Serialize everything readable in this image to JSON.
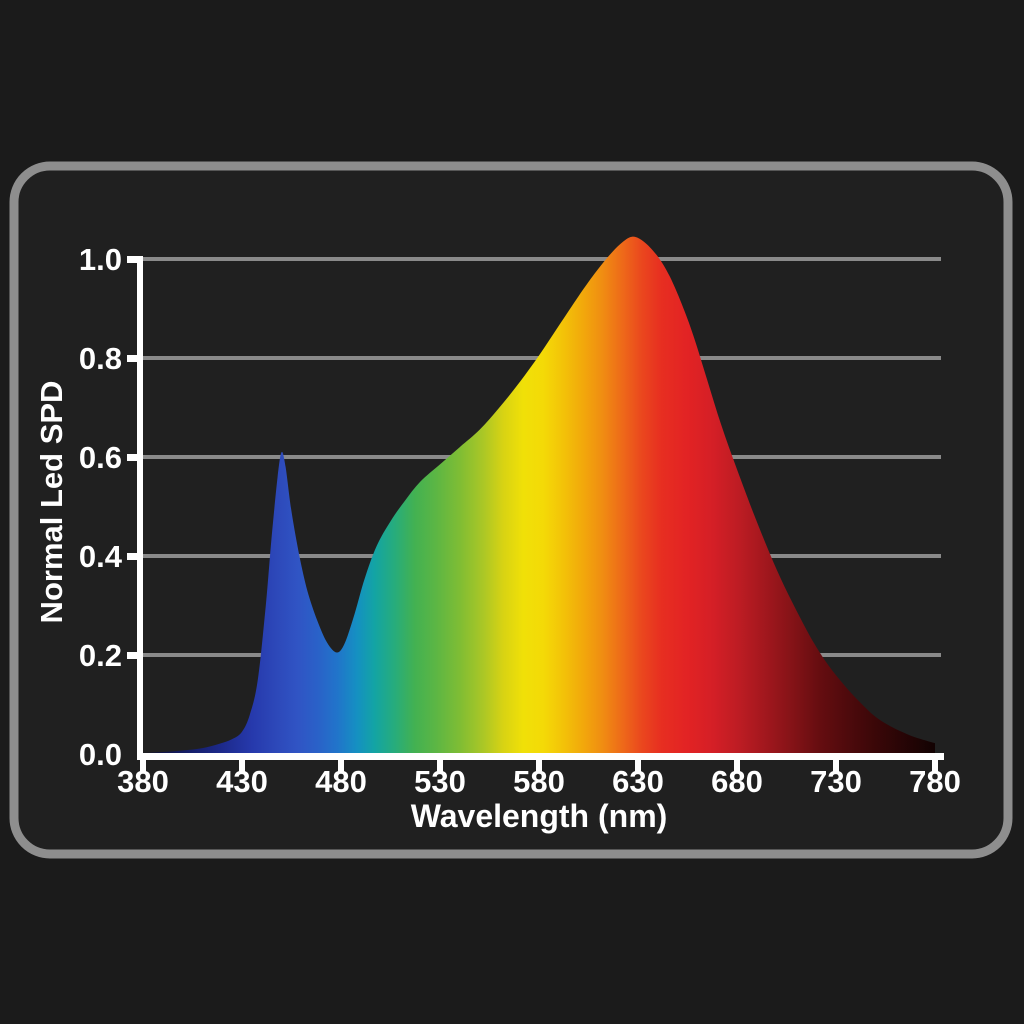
{
  "page": {
    "background": "#1b1b1b"
  },
  "card": {
    "background": "#202020",
    "border_color": "#8e8e8e",
    "border_width": 9,
    "corner_radius": 36
  },
  "colors": {
    "axis": "#ffffff",
    "grid": "#8a8a8a",
    "label": "#ffffff"
  },
  "chart_data": {
    "type": "area",
    "title": "",
    "xlabel": "Wavelength (nm)",
    "ylabel": "Normal Led SPD",
    "xlim": [
      380,
      780
    ],
    "ylim": [
      0,
      1.05
    ],
    "x_ticks": [
      380,
      430,
      480,
      530,
      580,
      630,
      680,
      730,
      780
    ],
    "x_tick_labels": [
      "380",
      "430",
      "480",
      "530",
      "580",
      "630",
      "680",
      "730",
      "780"
    ],
    "y_ticks": [
      0.0,
      0.2,
      0.4,
      0.6,
      0.8,
      1.0
    ],
    "y_tick_labels": [
      "0.0",
      "0.2",
      "0.4",
      "0.6",
      "0.8",
      "1.0"
    ],
    "grid": "horizontal",
    "legend": "none",
    "annotations": {
      "blue_peak": {
        "x": 450,
        "y": 0.61
      },
      "dip": {
        "x": 478,
        "y": 0.205
      },
      "main_peak": {
        "x": 627,
        "y": 1.045
      }
    },
    "series": [
      {
        "name": "Normal Led SPD",
        "x": [
          380,
          390,
          400,
          410,
          418,
          425,
          430,
          434,
          438,
          442,
          445,
          448,
          450,
          452,
          455,
          459,
          463,
          468,
          473,
          478,
          482,
          487,
          492,
          498,
          505,
          512,
          520,
          530,
          540,
          550,
          560,
          570,
          580,
          590,
          600,
          608,
          615,
          621,
          627,
          633,
          640,
          646,
          652,
          658,
          665,
          672,
          680,
          688,
          695,
          702,
          710,
          718,
          726,
          734,
          742,
          750,
          758,
          766,
          773,
          780
        ],
        "y": [
          0.002,
          0.004,
          0.007,
          0.012,
          0.02,
          0.03,
          0.045,
          0.08,
          0.15,
          0.3,
          0.44,
          0.56,
          0.61,
          0.58,
          0.49,
          0.4,
          0.33,
          0.27,
          0.225,
          0.205,
          0.225,
          0.285,
          0.355,
          0.42,
          0.47,
          0.51,
          0.55,
          0.585,
          0.62,
          0.655,
          0.7,
          0.75,
          0.805,
          0.865,
          0.925,
          0.97,
          1.005,
          1.03,
          1.045,
          1.035,
          1.005,
          0.965,
          0.91,
          0.845,
          0.755,
          0.665,
          0.575,
          0.49,
          0.42,
          0.355,
          0.29,
          0.23,
          0.18,
          0.14,
          0.105,
          0.075,
          0.055,
          0.04,
          0.03,
          0.022
        ]
      }
    ],
    "spectral_gradient": [
      {
        "wavelength": 380,
        "color": "#0e0e30"
      },
      {
        "wavelength": 400,
        "color": "#131b62"
      },
      {
        "wavelength": 420,
        "color": "#1d2a8c"
      },
      {
        "wavelength": 435,
        "color": "#2639ac"
      },
      {
        "wavelength": 448,
        "color": "#2d49ba"
      },
      {
        "wavelength": 458,
        "color": "#3054c4"
      },
      {
        "wavelength": 468,
        "color": "#2a61c8"
      },
      {
        "wavelength": 478,
        "color": "#2174ca"
      },
      {
        "wavelength": 488,
        "color": "#1590c2"
      },
      {
        "wavelength": 497,
        "color": "#13a4a4"
      },
      {
        "wavelength": 507,
        "color": "#27ac7c"
      },
      {
        "wavelength": 517,
        "color": "#42b152"
      },
      {
        "wavelength": 528,
        "color": "#5cb644"
      },
      {
        "wavelength": 540,
        "color": "#7fbd34"
      },
      {
        "wavelength": 552,
        "color": "#abc726"
      },
      {
        "wavelength": 562,
        "color": "#d8d313"
      },
      {
        "wavelength": 572,
        "color": "#f0e008"
      },
      {
        "wavelength": 582,
        "color": "#f4da07"
      },
      {
        "wavelength": 592,
        "color": "#f3c308"
      },
      {
        "wavelength": 602,
        "color": "#f2a90b"
      },
      {
        "wavelength": 612,
        "color": "#f08d12"
      },
      {
        "wavelength": 622,
        "color": "#ee6a19"
      },
      {
        "wavelength": 632,
        "color": "#ea471e"
      },
      {
        "wavelength": 642,
        "color": "#e72e21"
      },
      {
        "wavelength": 655,
        "color": "#e22324"
      },
      {
        "wavelength": 668,
        "color": "#d41f26"
      },
      {
        "wavelength": 682,
        "color": "#bb1c23"
      },
      {
        "wavelength": 695,
        "color": "#a0171d"
      },
      {
        "wavelength": 708,
        "color": "#841317"
      },
      {
        "wavelength": 722,
        "color": "#650d10"
      },
      {
        "wavelength": 736,
        "color": "#4e0a0c"
      },
      {
        "wavelength": 750,
        "color": "#3a0708"
      },
      {
        "wavelength": 762,
        "color": "#2a0506"
      },
      {
        "wavelength": 772,
        "color": "#1d0404"
      },
      {
        "wavelength": 780,
        "color": "#120202"
      }
    ]
  }
}
